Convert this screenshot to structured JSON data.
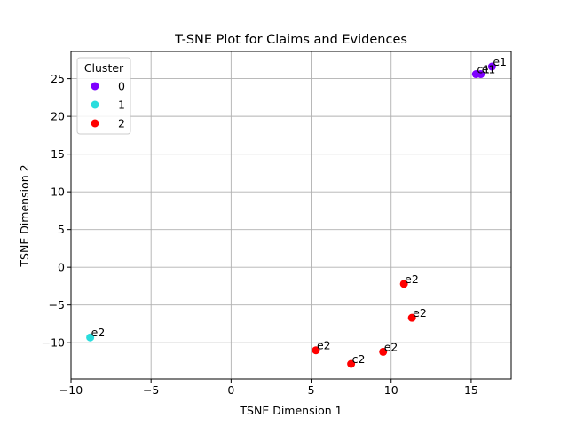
{
  "chart_data": {
    "type": "scatter",
    "title": "T-SNE Plot for Claims and Evidences",
    "xlabel": "TSNE Dimension 1",
    "ylabel": "TSNE Dimension 2",
    "xlim": [
      -10,
      17.5
    ],
    "ylim": [
      -14.8,
      28.6
    ],
    "xticks": [
      -10,
      -5,
      0,
      5,
      10,
      15
    ],
    "yticks": [
      -10,
      -5,
      0,
      5,
      10,
      15,
      20,
      25
    ],
    "xtick_labels": [
      "−10",
      "−5",
      "0",
      "5",
      "10",
      "15"
    ],
    "ytick_labels": [
      "−10",
      "−5",
      "0",
      "5",
      "10",
      "15",
      "20",
      "25"
    ],
    "grid": true,
    "legend": {
      "title": "Cluster",
      "placement": "upper-left",
      "entries": [
        {
          "label": "0",
          "color": "#7f00ff"
        },
        {
          "label": "1",
          "color": "#2adddd"
        },
        {
          "label": "2",
          "color": "#ff0000"
        }
      ]
    },
    "points": [
      {
        "x": 15.3,
        "y": 25.6,
        "cluster": 0,
        "label": "c1"
      },
      {
        "x": 15.6,
        "y": 25.6,
        "cluster": 0,
        "label": "e1"
      },
      {
        "x": 16.3,
        "y": 26.6,
        "cluster": 0,
        "label": "e1"
      },
      {
        "x": -8.8,
        "y": -9.3,
        "cluster": 1,
        "label": "e2"
      },
      {
        "x": 5.3,
        "y": -11.0,
        "cluster": 2,
        "label": "e2"
      },
      {
        "x": 7.5,
        "y": -12.8,
        "cluster": 2,
        "label": "c2"
      },
      {
        "x": 9.5,
        "y": -11.2,
        "cluster": 2,
        "label": "e2"
      },
      {
        "x": 10.8,
        "y": -2.2,
        "cluster": 2,
        "label": "e2"
      },
      {
        "x": 11.3,
        "y": -6.7,
        "cluster": 2,
        "label": "e2"
      }
    ]
  }
}
